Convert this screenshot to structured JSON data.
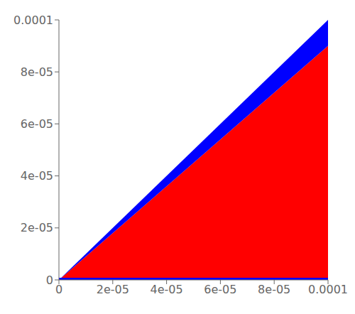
{
  "chart_data": {
    "type": "area",
    "x": [
      0,
      0.0001
    ],
    "series": [
      {
        "color": "#ff0000",
        "values": [
          [
            0,
            0
          ],
          [
            0,
            9e-05
          ]
        ]
      },
      {
        "color": "#0000ff",
        "values": [
          [
            0,
            0
          ],
          [
            9e-05,
            0.0001
          ]
        ]
      },
      {
        "color": "#0000ff",
        "values": [
          [
            0,
            8e-07
          ],
          [
            0,
            8e-07
          ]
        ]
      }
    ],
    "xlim": [
      0,
      0.0001
    ],
    "ylim": [
      0,
      0.0001
    ],
    "xticks": [
      0,
      {
        "value": 2e-05,
        "label": "2e-05"
      },
      {
        "value": 4e-05,
        "label": "4e-05"
      },
      {
        "value": 6e-05,
        "label": "6e-05"
      },
      {
        "value": 8e-05,
        "label": "8e-05"
      },
      0.0001
    ],
    "yticks": [
      0,
      {
        "value": 2e-05,
        "label": "2e-05"
      },
      {
        "value": 4e-05,
        "label": "4e-05"
      },
      {
        "value": 6e-05,
        "label": "6e-05"
      },
      {
        "value": 8e-05,
        "label": "8e-05"
      },
      0.0001
    ],
    "grid": false
  }
}
